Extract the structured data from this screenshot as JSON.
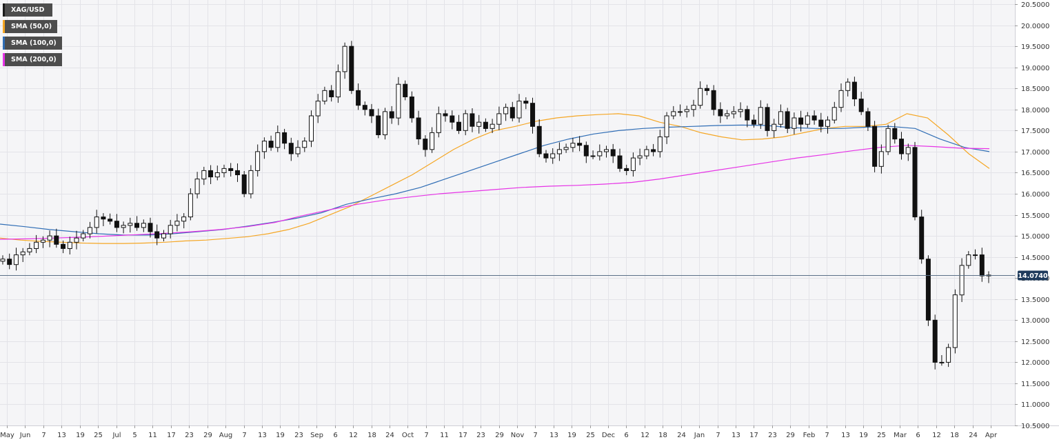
{
  "chart_data": {
    "type": "candlestick",
    "symbol": "XAG/USD",
    "legend": [
      {
        "label": "XAG/USD",
        "color": "#1a1a1a"
      },
      {
        "label": "SMA (50,0)",
        "color": "#f5a623"
      },
      {
        "label": "SMA (100,0)",
        "color": "#2f6db5"
      },
      {
        "label": "SMA (200,0)",
        "color": "#e632e6"
      }
    ],
    "legend_placement": "top-left",
    "current_price": "14.0740",
    "current_value": 14.074,
    "ylim": [
      10.5,
      20.6
    ],
    "y_ticks": [
      "10.5000",
      "11.0000",
      "11.5000",
      "12.0000",
      "12.5000",
      "13.0000",
      "13.5000",
      "14.0000",
      "14.5000",
      "15.0000",
      "15.5000",
      "16.0000",
      "16.5000",
      "17.0000",
      "17.5000",
      "18.0000",
      "18.5000",
      "19.0000",
      "19.5000",
      "20.0000",
      "20.5000"
    ],
    "x_ticks": [
      "May",
      "Jun",
      "7",
      "13",
      "19",
      "25",
      "Jul",
      "5",
      "11",
      "17",
      "23",
      "29",
      "Aug",
      "7",
      "13",
      "19",
      "23",
      "Sep",
      "6",
      "12",
      "18",
      "24",
      "Oct",
      "7",
      "11",
      "17",
      "23",
      "29",
      "Nov",
      "7",
      "13",
      "19",
      "25",
      "Dec",
      "6",
      "12",
      "18",
      "24",
      "Jan",
      "7",
      "13",
      "17",
      "23",
      "29",
      "Feb",
      "7",
      "13",
      "19",
      "25",
      "Mar",
      "6",
      "12",
      "18",
      "24",
      "Apr"
    ],
    "grid": true,
    "series": [
      {
        "name": "XAG/USD",
        "kind": "candles",
        "closes": [
          14.45,
          14.32,
          14.55,
          14.62,
          14.7,
          14.85,
          14.9,
          15.0,
          14.8,
          14.7,
          14.85,
          14.95,
          15.05,
          15.2,
          15.45,
          15.4,
          15.35,
          15.2,
          15.25,
          15.3,
          15.2,
          15.3,
          15.1,
          14.95,
          15.05,
          15.25,
          15.35,
          15.45,
          16.0,
          16.35,
          16.55,
          16.4,
          16.5,
          16.6,
          16.55,
          16.45,
          16.0,
          16.55,
          17.0,
          17.25,
          17.1,
          17.45,
          17.2,
          16.95,
          17.1,
          17.25,
          17.85,
          18.2,
          18.45,
          18.3,
          18.9,
          19.5,
          18.45,
          18.1,
          18.0,
          17.85,
          17.4,
          17.95,
          17.8,
          18.6,
          18.3,
          17.8,
          17.3,
          17.05,
          17.45,
          17.9,
          17.85,
          17.7,
          17.5,
          17.9,
          17.6,
          17.7,
          17.55,
          17.65,
          17.9,
          18.05,
          17.8,
          18.2,
          18.15,
          17.6,
          16.95,
          16.85,
          16.95,
          17.05,
          17.1,
          17.2,
          17.15,
          16.9,
          16.9,
          17.0,
          17.05,
          16.9,
          16.6,
          16.55,
          16.85,
          16.9,
          17.05,
          17.0,
          17.35,
          17.85,
          17.95,
          17.95,
          18.0,
          18.1,
          18.5,
          18.45,
          18.0,
          17.85,
          17.9,
          17.95,
          18.0,
          17.75,
          17.65,
          18.05,
          17.5,
          17.65,
          17.95,
          17.55,
          17.8,
          17.65,
          17.85,
          17.75,
          17.6,
          17.75,
          18.05,
          18.45,
          18.65,
          18.25,
          17.95,
          17.6,
          16.65,
          17.0,
          17.55,
          17.3,
          16.95,
          17.1,
          15.45,
          14.45,
          13.0,
          12.0,
          12.0,
          12.35,
          13.6,
          14.3,
          14.55,
          14.55,
          14.05,
          14.07
        ]
      },
      {
        "name": "SMA (50,0)",
        "kind": "line",
        "values": [
          14.95,
          14.9,
          14.87,
          14.85,
          14.83,
          14.82,
          14.82,
          14.83,
          14.85,
          14.88,
          14.9,
          14.94,
          14.98,
          15.05,
          15.15,
          15.3,
          15.5,
          15.7,
          15.95,
          16.2,
          16.45,
          16.75,
          17.05,
          17.3,
          17.5,
          17.6,
          17.72,
          17.8,
          17.85,
          17.88,
          17.9,
          17.85,
          17.7,
          17.6,
          17.45,
          17.35,
          17.28,
          17.3,
          17.35,
          17.45,
          17.55,
          17.6,
          17.6,
          17.65,
          17.9,
          17.8,
          17.4,
          16.95,
          16.6
        ]
      },
      {
        "name": "SMA (100,0)",
        "kind": "line",
        "values": [
          15.28,
          15.22,
          15.15,
          15.1,
          15.05,
          15.02,
          15.02,
          15.05,
          15.1,
          15.15,
          15.23,
          15.32,
          15.42,
          15.55,
          15.75,
          15.88,
          16.0,
          16.15,
          16.35,
          16.55,
          16.75,
          16.95,
          17.15,
          17.3,
          17.42,
          17.5,
          17.55,
          17.58,
          17.6,
          17.62,
          17.63,
          17.62,
          17.57,
          17.55,
          17.55,
          17.58,
          17.6,
          17.55,
          17.3,
          17.1,
          17.0
        ]
      },
      {
        "name": "SMA (200,0)",
        "kind": "line",
        "values": [
          14.92,
          14.93,
          14.95,
          14.97,
          15.0,
          15.03,
          15.06,
          15.1,
          15.15,
          15.22,
          15.32,
          15.48,
          15.62,
          15.75,
          15.85,
          15.93,
          16.0,
          16.05,
          16.1,
          16.15,
          16.18,
          16.2,
          16.23,
          16.27,
          16.35,
          16.45,
          16.55,
          16.65,
          16.75,
          16.85,
          16.93,
          17.02,
          17.1,
          17.15,
          17.12,
          17.08,
          17.07
        ]
      }
    ]
  }
}
